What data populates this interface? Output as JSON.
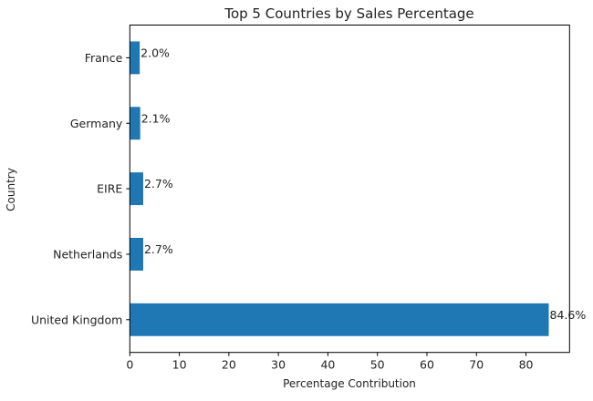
{
  "chart_data": {
    "type": "bar",
    "orientation": "horizontal",
    "title": "Top 5 Countries by Sales Percentage",
    "xlabel": "Percentage Contribution",
    "ylabel": "Country",
    "categories": [
      "United Kingdom",
      "Netherlands",
      "EIRE",
      "Germany",
      "France"
    ],
    "values": [
      84.6,
      2.7,
      2.7,
      2.1,
      2.0
    ],
    "data_labels": [
      "84.6%",
      "2.7%",
      "2.7%",
      "2.1%",
      "2.0%"
    ],
    "xlim": [
      0,
      88.8
    ],
    "xticks": [
      0,
      10,
      20,
      30,
      40,
      50,
      60,
      70,
      80
    ],
    "grid": false,
    "bar_color": "#1f77b4"
  }
}
